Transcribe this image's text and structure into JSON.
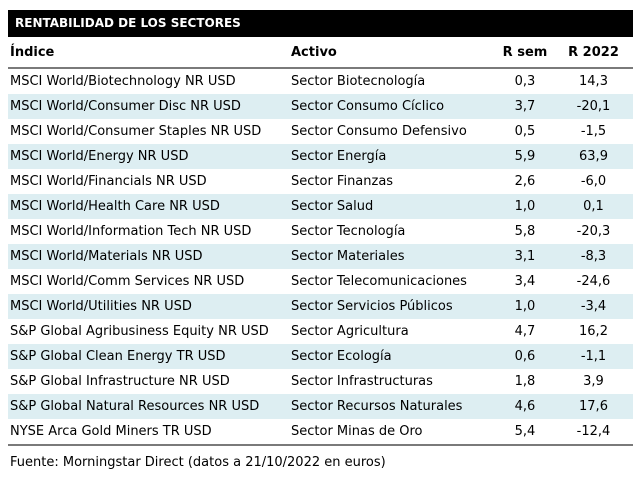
{
  "title": "RENTABILIDAD DE LOS SECTORES",
  "source": "Fuente: Morningstar Direct (datos a 21/10/2022 en euros)",
  "colors": {
    "title_bar_bg": "#000000",
    "title_bar_text": "#ffffff",
    "row_stripe": "#ddeef2",
    "rule_gray": "#7a7a7a",
    "text": "#000000"
  },
  "chart_data": {
    "type": "table",
    "title": "RENTABILIDAD DE LOS SECTORES",
    "columns": [
      "Índice",
      "Activo",
      "R sem",
      "R 2022"
    ],
    "rows": [
      [
        "MSCI World/Biotechnology NR USD",
        "Sector Biotecnología",
        "0,3",
        "14,3"
      ],
      [
        "MSCI World/Consumer Disc NR USD",
        "Sector Consumo Cíclico",
        "3,7",
        "-20,1"
      ],
      [
        "MSCI World/Consumer Staples NR USD",
        "Sector Consumo Defensivo",
        "0,5",
        "-1,5"
      ],
      [
        "MSCI World/Energy NR USD",
        "Sector Energía",
        "5,9",
        "63,9"
      ],
      [
        "MSCI World/Financials NR USD",
        "Sector Finanzas",
        "2,6",
        "-6,0"
      ],
      [
        "MSCI World/Health Care NR USD",
        "Sector Salud",
        "1,0",
        "0,1"
      ],
      [
        "MSCI World/Information Tech NR USD",
        "Sector Tecnología",
        "5,8",
        "-20,3"
      ],
      [
        "MSCI World/Materials NR USD",
        "Sector Materiales",
        "3,1",
        "-8,3"
      ],
      [
        "MSCI World/Comm Services NR USD",
        "Sector Telecomunicaciones",
        "3,4",
        "-24,6"
      ],
      [
        "MSCI World/Utilities NR USD",
        "Sector Servicios Públicos",
        "1,0",
        "-3,4"
      ],
      [
        "S&P Global Agribusiness Equity NR USD",
        "Sector Agricultura",
        "4,7",
        "16,2"
      ],
      [
        "S&P Global Clean Energy TR USD",
        "Sector Ecología",
        "0,6",
        "-1,1"
      ],
      [
        "S&P Global Infrastructure NR USD",
        "Sector Infrastructuras",
        "1,8",
        "3,9"
      ],
      [
        "S&P Global Natural Resources NR USD",
        "Sector Recursos Naturales",
        "4,6",
        "17,6"
      ],
      [
        "NYSE Arca Gold Miners TR USD",
        "Sector Minas de Oro",
        "5,4",
        "-12,4"
      ]
    ],
    "notes": "Striped table, alternate rows light blue; decimal comma; source line below table"
  }
}
